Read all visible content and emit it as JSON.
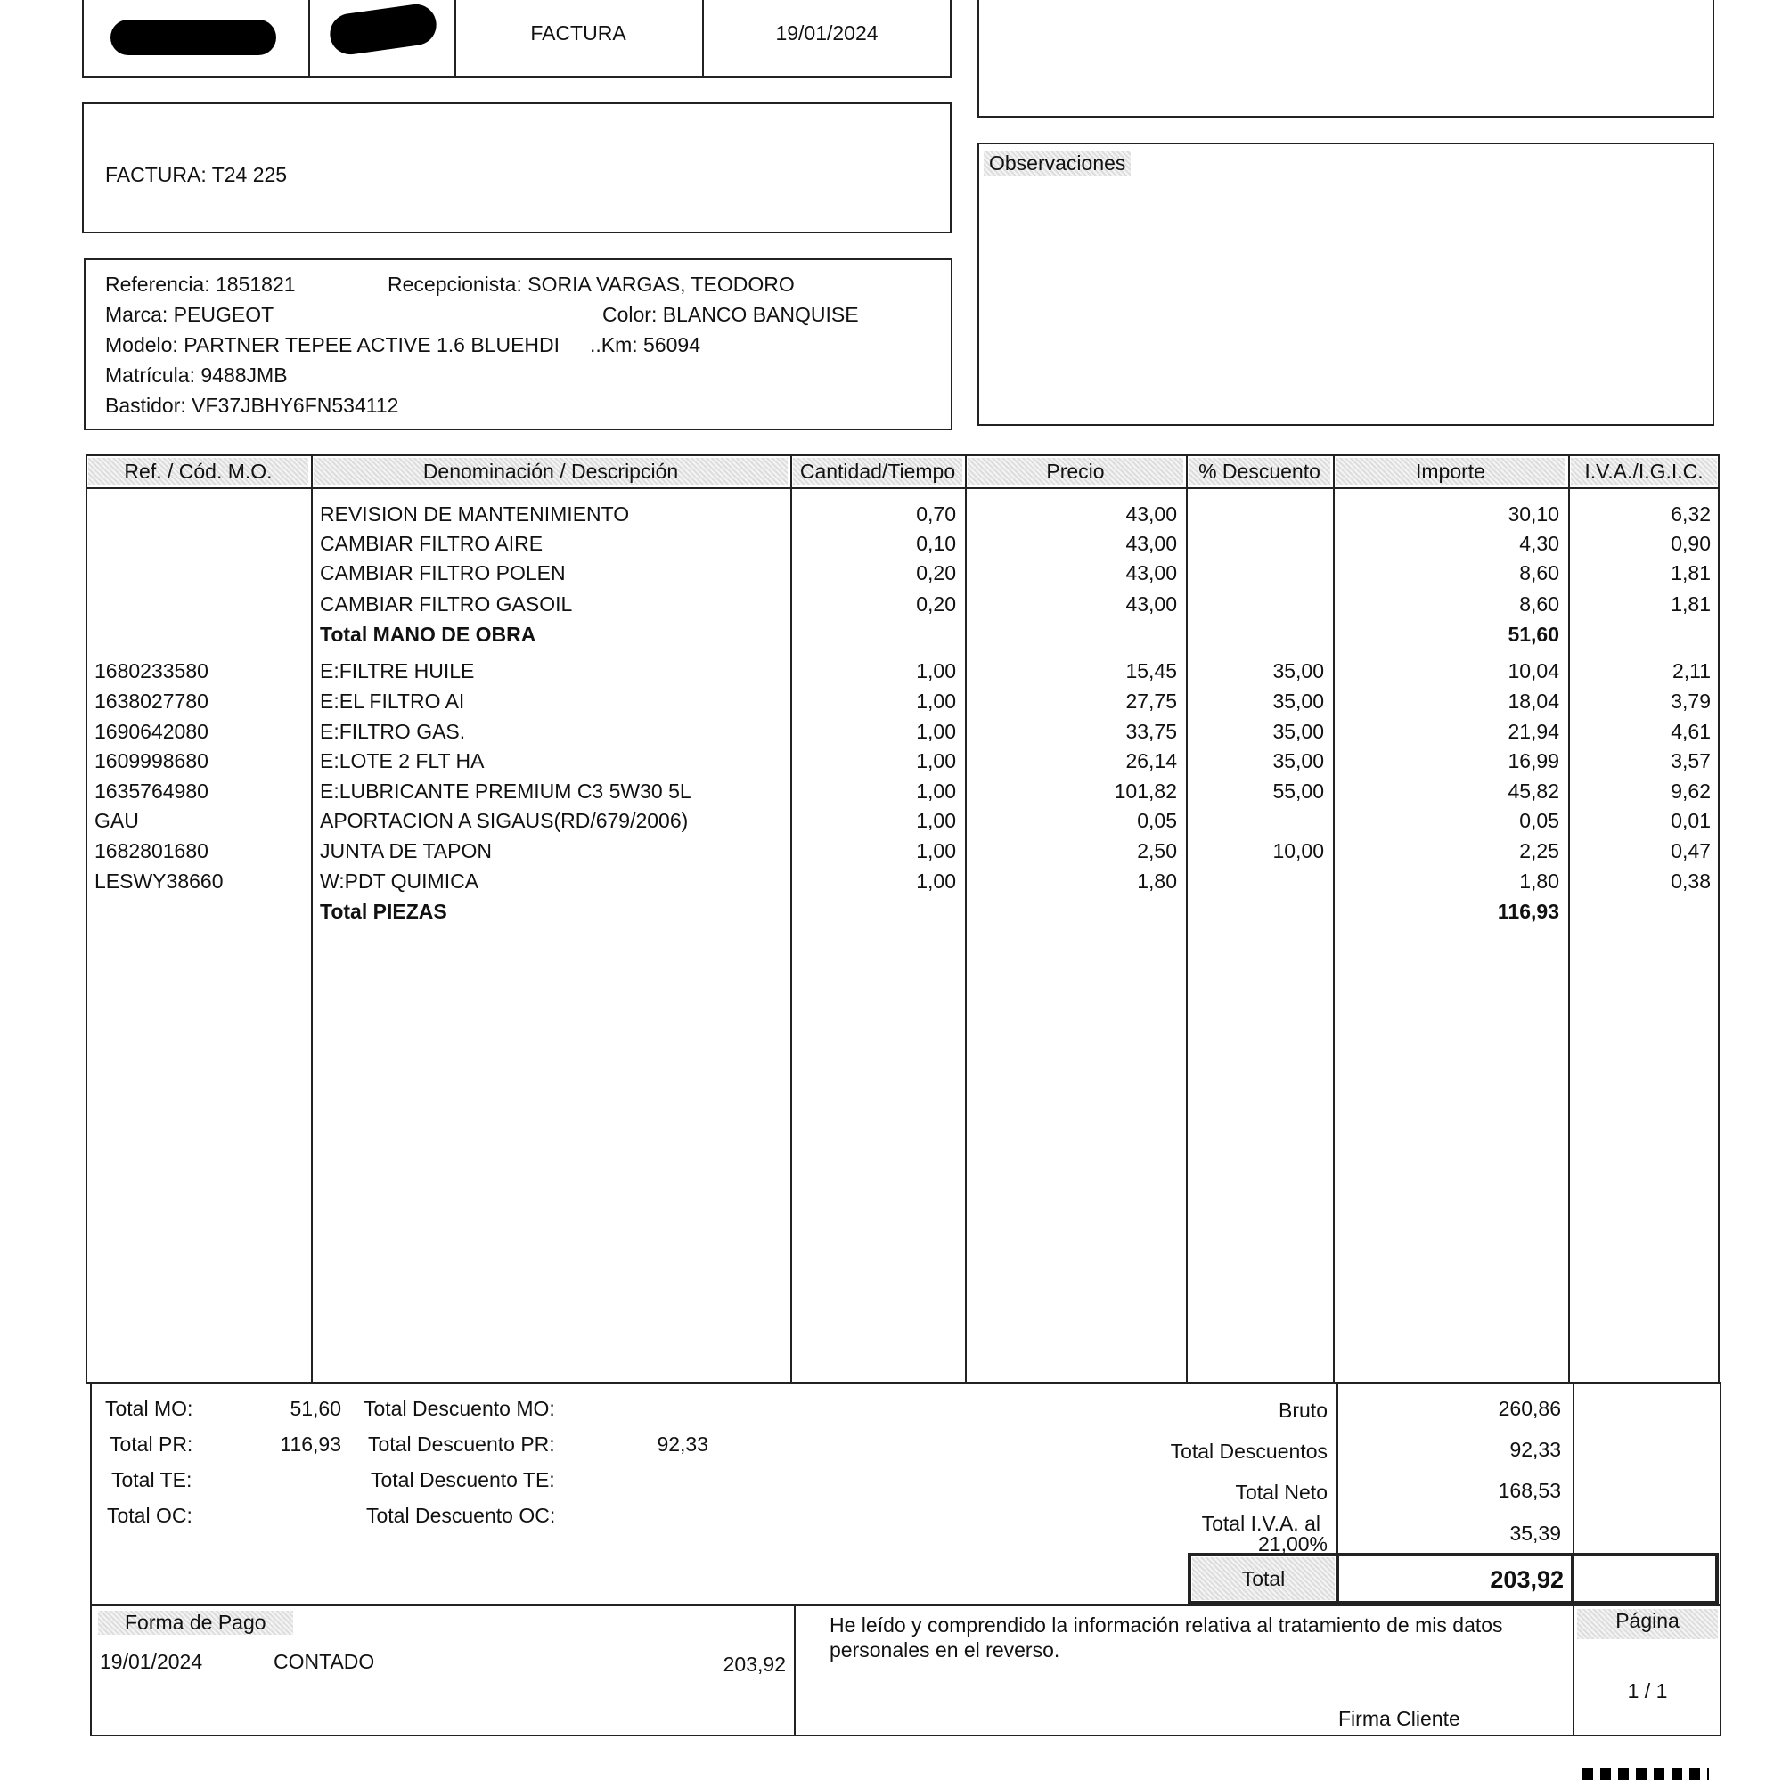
{
  "header": {
    "doc_type": "FACTURA",
    "date": "19/01/2024"
  },
  "invoice": {
    "number_label": "FACTURA: T24 225"
  },
  "observations": {
    "label": "Observaciones"
  },
  "vehicle": {
    "referencia": "Referencia: 1851821",
    "recepcionista": "Recepcionista: SORIA VARGAS, TEODORO",
    "marca": "Marca: PEUGEOT",
    "color": "Color: BLANCO BANQUISE",
    "modelo": "Modelo: PARTNER TEPEE ACTIVE 1.6 BLUEHDI",
    "km": "..Km: 56094",
    "matricula": "Matrícula: 9488JMB",
    "bastidor": "Bastidor: VF37JBHY6FN534112"
  },
  "table": {
    "headers": [
      "Ref. / Cód. M.O.",
      "Denominación / Descripción",
      "Cantidad/Tiempo",
      "Precio",
      "% Descuento",
      "Importe",
      "I.V.A./I.G.I.C."
    ],
    "rows": [
      {
        "ref": "",
        "desc": "REVISION DE MANTENIMIENTO",
        "qty": "0,70",
        "price": "43,00",
        "disc": "",
        "amount": "30,10",
        "vat": "6,32"
      },
      {
        "ref": "",
        "desc": "CAMBIAR FILTRO AIRE",
        "qty": "0,10",
        "price": "43,00",
        "disc": "",
        "amount": "4,30",
        "vat": "0,90"
      },
      {
        "ref": "",
        "desc": "CAMBIAR FILTRO POLEN",
        "qty": "0,20",
        "price": "43,00",
        "disc": "",
        "amount": "8,60",
        "vat": "1,81"
      },
      {
        "ref": "",
        "desc": "CAMBIAR FILTRO GASOIL",
        "qty": "0,20",
        "price": "43,00",
        "disc": "",
        "amount": "8,60",
        "vat": "1,81"
      },
      {
        "ref": "",
        "desc": "Total MANO DE OBRA",
        "qty": "",
        "price": "",
        "disc": "",
        "amount": "51,60",
        "vat": "",
        "bold": true
      },
      {
        "ref": "1680233580",
        "desc": "E:FILTRE HUILE",
        "qty": "1,00",
        "price": "15,45",
        "disc": "35,00",
        "amount": "10,04",
        "vat": "2,11"
      },
      {
        "ref": "1638027780",
        "desc": "E:EL FILTRO AI",
        "qty": "1,00",
        "price": "27,75",
        "disc": "35,00",
        "amount": "18,04",
        "vat": "3,79"
      },
      {
        "ref": "1690642080",
        "desc": "E:FILTRO GAS.",
        "qty": "1,00",
        "price": "33,75",
        "disc": "35,00",
        "amount": "21,94",
        "vat": "4,61"
      },
      {
        "ref": "1609998680",
        "desc": "E:LOTE 2 FLT HA",
        "qty": "1,00",
        "price": "26,14",
        "disc": "35,00",
        "amount": "16,99",
        "vat": "3,57"
      },
      {
        "ref": "1635764980",
        "desc": "E:LUBRICANTE PREMIUM C3 5W30 5L",
        "qty": "1,00",
        "price": "101,82",
        "disc": "55,00",
        "amount": "45,82",
        "vat": "9,62"
      },
      {
        "ref": "GAU",
        "desc": "APORTACION A SIGAUS(RD/679/2006)",
        "qty": "1,00",
        "price": "0,05",
        "disc": "",
        "amount": "0,05",
        "vat": "0,01"
      },
      {
        "ref": "1682801680",
        "desc": "JUNTA DE TAPON",
        "qty": "1,00",
        "price": "2,50",
        "disc": "10,00",
        "amount": "2,25",
        "vat": "0,47"
      },
      {
        "ref": "LESWY38660",
        "desc": "W:PDT QUIMICA",
        "qty": "1,00",
        "price": "1,80",
        "disc": "",
        "amount": "1,80",
        "vat": "0,38"
      },
      {
        "ref": "",
        "desc": "Total PIEZAS",
        "qty": "",
        "price": "",
        "disc": "",
        "amount": "116,93",
        "vat": "",
        "bold": true
      }
    ]
  },
  "totals": {
    "mo_label": "Total MO:",
    "mo": "51,60",
    "dmo_label": "Total Descuento MO:",
    "pr_label": "Total PR:",
    "pr": "116,93",
    "dpr_label": "Total Descuento PR:",
    "dpr": "92,33",
    "te_label": "Total TE:",
    "dte_label": "Total Descuento TE:",
    "oc_label": "Total OC:",
    "doc_label": "Total Descuento OC:",
    "bruto_label": "Bruto",
    "bruto": "260,86",
    "desc_label": "Total Descuentos",
    "desc": "92,33",
    "neto_label": "Total Neto",
    "neto": "168,53",
    "iva_label": "Total I.V.A. al",
    "iva_rate": "21,00%",
    "iva": "35,39",
    "total_label": "Total",
    "total": "203,92"
  },
  "footer": {
    "payment_label": "Forma de Pago",
    "payment_date": "19/01/2024",
    "payment_method": "CONTADO",
    "payment_amount": "203,92",
    "privacy_text": "He leído y comprendido la información relativa al tratamiento de mis datos personales en el reverso.",
    "signature_label": "Firma Cliente",
    "page_label": "Página",
    "page": "1 / 1"
  }
}
